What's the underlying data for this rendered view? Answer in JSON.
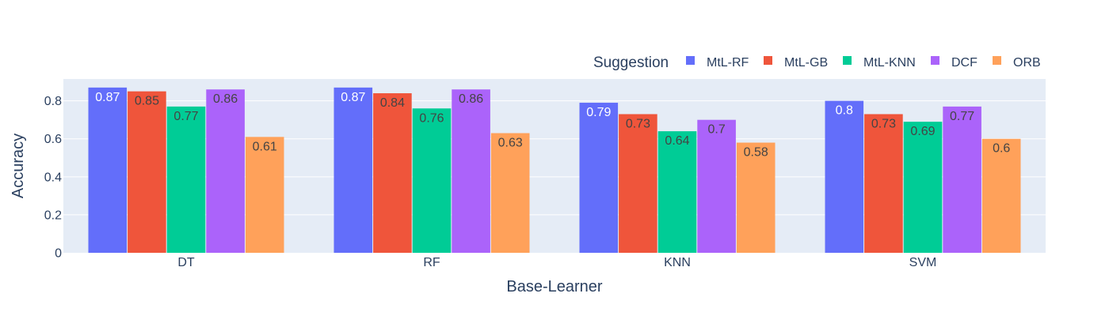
{
  "chart_data": {
    "type": "bar",
    "title": "",
    "xlabel": "Base-Learner",
    "ylabel": "Accuracy",
    "ylim": [
      0,
      0.915
    ],
    "yticks": [
      0,
      0.2,
      0.4,
      0.6,
      0.8
    ],
    "ytick_labels": [
      "0",
      "0.2",
      "0.4",
      "0.6",
      "0.8"
    ],
    "grid": true,
    "legend": {
      "title": "Suggestion",
      "placement": "top-right",
      "orientation": "horizontal"
    },
    "categories": [
      "DT",
      "RF",
      "KNN",
      "SVM"
    ],
    "series": [
      {
        "name": "MtL-RF",
        "color": "#636efa",
        "values": [
          0.87,
          0.87,
          0.79,
          0.8
        ],
        "labels": [
          "0.87",
          "0.87",
          "0.79",
          "0.8"
        ],
        "label_color": "#ffffff"
      },
      {
        "name": "MtL-GB",
        "color": "#ef553b",
        "values": [
          0.85,
          0.84,
          0.73,
          0.73
        ],
        "labels": [
          "0.85",
          "0.84",
          "0.73",
          "0.73"
        ],
        "label_color": "#444444"
      },
      {
        "name": "MtL-KNN",
        "color": "#00cc96",
        "values": [
          0.77,
          0.76,
          0.64,
          0.69
        ],
        "labels": [
          "0.77",
          "0.76",
          "0.64",
          "0.69"
        ],
        "label_color": "#444444"
      },
      {
        "name": "DCF",
        "color": "#ab63fa",
        "values": [
          0.86,
          0.86,
          0.7,
          0.77
        ],
        "labels": [
          "0.86",
          "0.86",
          "0.7",
          "0.77"
        ],
        "label_color": "#444444"
      },
      {
        "name": "ORB",
        "color": "#ffa15a",
        "values": [
          0.61,
          0.63,
          0.58,
          0.6
        ],
        "labels": [
          "0.61",
          "0.63",
          "0.58",
          "0.6"
        ],
        "label_color": "#444444"
      }
    ],
    "colors": {
      "plot_background": "#e5ecf6",
      "grid": "#ffffff",
      "text": "#2a3f5f"
    }
  }
}
